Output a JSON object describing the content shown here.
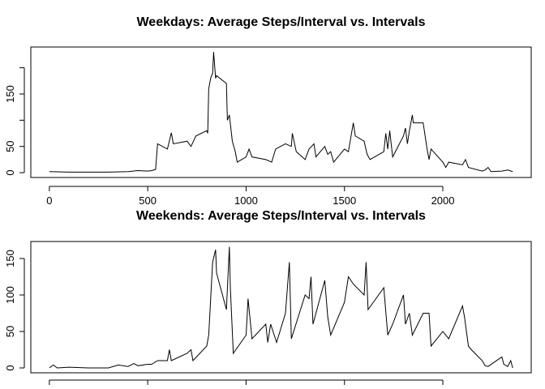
{
  "chart_data": [
    {
      "type": "line",
      "title": "Weekdays: Average Steps/Interval vs. Intervals",
      "color": "#000000",
      "x": [
        0,
        100,
        200,
        300,
        400,
        450,
        500,
        520,
        540,
        550,
        600,
        620,
        630,
        700,
        720,
        745,
        800,
        805,
        810,
        820,
        830,
        835,
        845,
        850,
        900,
        905,
        915,
        930,
        945,
        955,
        1000,
        1015,
        1030,
        1100,
        1130,
        1150,
        1200,
        1230,
        1235,
        1255,
        1300,
        1320,
        1345,
        1355,
        1400,
        1415,
        1430,
        1445,
        1500,
        1520,
        1545,
        1555,
        1600,
        1615,
        1630,
        1700,
        1710,
        1720,
        1730,
        1745,
        1800,
        1810,
        1820,
        1830,
        1845,
        1850,
        1900,
        1910,
        1920,
        1930,
        1940,
        2000,
        2015,
        2030,
        2100,
        2115,
        2130,
        2200,
        2215,
        2230,
        2245,
        2300,
        2330,
        2355
      ],
      "values": [
        2,
        1,
        1,
        1,
        2,
        4,
        3,
        4,
        6,
        55,
        45,
        76,
        55,
        60,
        50,
        70,
        80,
        75,
        160,
        180,
        190,
        230,
        180,
        185,
        170,
        100,
        110,
        60,
        40,
        20,
        30,
        45,
        30,
        25,
        20,
        45,
        55,
        50,
        75,
        40,
        25,
        45,
        55,
        30,
        50,
        35,
        40,
        20,
        45,
        40,
        95,
        70,
        60,
        35,
        25,
        40,
        75,
        45,
        80,
        30,
        70,
        85,
        55,
        80,
        110,
        95,
        95,
        70,
        45,
        25,
        45,
        20,
        10,
        20,
        15,
        25,
        10,
        3,
        5,
        10,
        2,
        3,
        5,
        2
      ],
      "xlim": [
        -94.2,
        2449.2
      ],
      "ylim": [
        -9.2,
        239.6
      ],
      "xticks": [
        0,
        500,
        1000,
        1500,
        2000
      ],
      "yticks": [
        0,
        50,
        150
      ],
      "yticks_unlabeled": [
        100,
        200
      ]
    },
    {
      "type": "line",
      "title": "Weekends: Average Steps/Interval vs. Intervals",
      "color": "#000000",
      "x": [
        0,
        20,
        40,
        100,
        200,
        300,
        350,
        400,
        430,
        450,
        500,
        520,
        550,
        600,
        610,
        620,
        700,
        720,
        730,
        800,
        810,
        830,
        845,
        850,
        900,
        915,
        920,
        935,
        1000,
        1010,
        1030,
        1100,
        1110,
        1125,
        1155,
        1200,
        1220,
        1230,
        1300,
        1320,
        1330,
        1340,
        1400,
        1415,
        1430,
        1500,
        1520,
        1545,
        1600,
        1610,
        1620,
        1700,
        1720,
        1745,
        1800,
        1810,
        1830,
        1845,
        1900,
        1930,
        1940,
        2000,
        2030,
        2100,
        2110,
        2130,
        2145,
        2200,
        2215,
        2230,
        2300,
        2310,
        2330,
        2345,
        2355
      ],
      "values": [
        0,
        4,
        0,
        1,
        0,
        0,
        4,
        2,
        6,
        3,
        5,
        5,
        10,
        10,
        25,
        10,
        20,
        25,
        10,
        30,
        45,
        145,
        162,
        130,
        80,
        166,
        110,
        20,
        45,
        95,
        40,
        60,
        35,
        60,
        35,
        75,
        145,
        40,
        100,
        95,
        125,
        60,
        120,
        70,
        45,
        90,
        125,
        115,
        100,
        145,
        80,
        110,
        45,
        60,
        100,
        60,
        75,
        45,
        75,
        75,
        30,
        50,
        40,
        85,
        70,
        30,
        25,
        10,
        3,
        2,
        15,
        5,
        2,
        10,
        0
      ],
      "xlim": [
        -94.2,
        2449.2
      ],
      "ylim": [
        -6.66,
        173.3
      ],
      "xticks": [
        0,
        500,
        1000,
        1500,
        2000
      ],
      "yticks": [
        0,
        50,
        100,
        150
      ]
    }
  ]
}
